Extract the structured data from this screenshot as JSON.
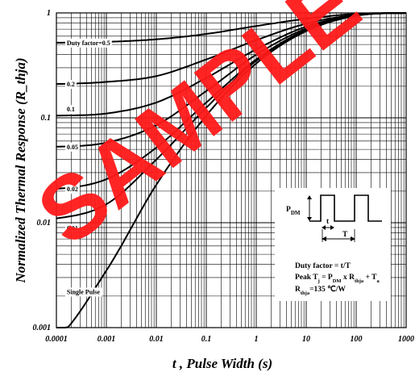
{
  "chart_data": {
    "type": "line",
    "title": "",
    "xlabel": "t , Pulse Width (s)",
    "ylabel": "Normalized Thermal Response (R_thja)",
    "xscale": "log",
    "yscale": "log",
    "xlim": [
      0.0001,
      1000
    ],
    "ylim": [
      0.001,
      1
    ],
    "grid": true,
    "x_ticks": [
      "0.0001",
      "0.001",
      "0.01",
      "0.1",
      "1",
      "10",
      "100",
      "1000"
    ],
    "y_ticks": [
      "0.001",
      "0.01",
      "0.1",
      "1"
    ],
    "series": [
      {
        "name": "Duty factor=0.5",
        "x": [
          0.0001,
          0.001,
          0.01,
          0.1,
          1,
          10,
          100,
          1000
        ],
        "y": [
          0.52,
          0.53,
          0.56,
          0.63,
          0.75,
          0.88,
          0.98,
          1.0
        ]
      },
      {
        "name": "0.2",
        "x": [
          0.0001,
          0.001,
          0.01,
          0.1,
          1,
          10,
          100,
          1000
        ],
        "y": [
          0.21,
          0.22,
          0.25,
          0.36,
          0.55,
          0.79,
          0.96,
          1.0
        ]
      },
      {
        "name": "0.1",
        "x": [
          0.0001,
          0.001,
          0.01,
          0.1,
          1,
          10,
          100,
          1000
        ],
        "y": [
          0.105,
          0.11,
          0.14,
          0.24,
          0.45,
          0.74,
          0.95,
          1.0
        ]
      },
      {
        "name": "0.05",
        "x": [
          0.0001,
          0.001,
          0.01,
          0.1,
          1,
          10,
          100,
          1000
        ],
        "y": [
          0.053,
          0.058,
          0.085,
          0.18,
          0.4,
          0.71,
          0.95,
          1.0
        ]
      },
      {
        "name": "0.02",
        "x": [
          0.0001,
          0.001,
          0.01,
          0.1,
          1,
          10,
          100,
          1000
        ],
        "y": [
          0.021,
          0.026,
          0.052,
          0.14,
          0.36,
          0.69,
          0.94,
          1.0
        ]
      },
      {
        "name": "0.01",
        "x": [
          0.0001,
          0.001,
          0.01,
          0.1,
          1,
          10,
          100,
          1000
        ],
        "y": [
          0.011,
          0.015,
          0.04,
          0.125,
          0.35,
          0.68,
          0.94,
          1.0
        ]
      },
      {
        "name": "Single Pulse",
        "x": [
          0.0001,
          0.001,
          0.01,
          0.1,
          1,
          10,
          100,
          1000
        ],
        "y": [
          0.0008,
          0.0035,
          0.023,
          0.105,
          0.33,
          0.67,
          0.94,
          1.0
        ]
      }
    ],
    "legend_box": {
      "pdm_label": "P",
      "pdm_sub": "DM",
      "t_label": "t",
      "T_label": "T",
      "line1": "Duty factor = t/T",
      "line2_a": "Peak T",
      "line2_a_sub": "j",
      "line2_b": " = P",
      "line2_b_sub": "DM",
      "line2_c": " x R",
      "line2_c_sub": "thja",
      "line2_d": " + T",
      "line2_d_sub": "a",
      "line3_a": "R",
      "line3_a_sub": "thja",
      "line3_b": "=135 ℃/W"
    },
    "watermark": "SAMPLE",
    "watermark_color": "#ff1a1a"
  }
}
